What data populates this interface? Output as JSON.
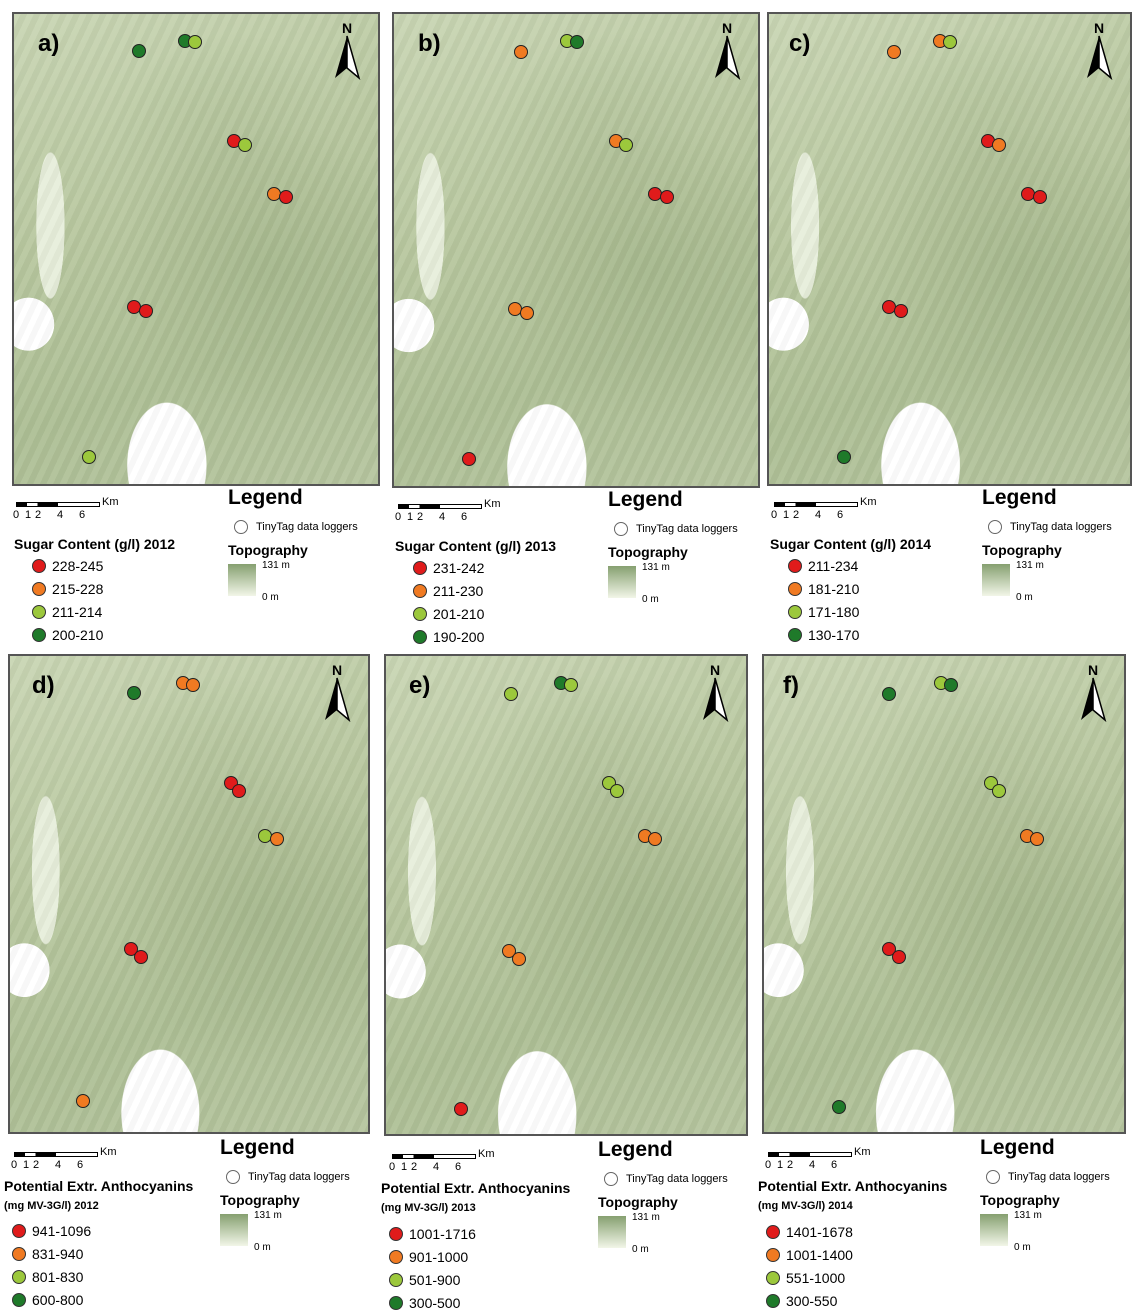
{
  "colors": {
    "red": "#e01b1b",
    "orange": "#f07a22",
    "lightgreen": "#9cc83c",
    "darkgreen": "#1f7a2a"
  },
  "legend": {
    "title": "Legend",
    "logger_label": "TinyTag data loggers",
    "topo_title": "Topography",
    "topo_max": "131 m",
    "topo_min": "0 m"
  },
  "scale": {
    "unit": "Km",
    "ticks": [
      "0",
      "1",
      "2",
      "4",
      "6"
    ]
  },
  "north_label": "N",
  "panels": [
    {
      "label": "a)",
      "title": "Sugar Content (g/l) 2012",
      "subtitle": "",
      "classes": [
        "228-245",
        "215-228",
        "211-214",
        "200-210"
      ]
    },
    {
      "label": "b)",
      "title": "Sugar Content (g/l) 2013",
      "subtitle": "",
      "classes": [
        "231-242",
        "211-230",
        "201-210",
        "190-200"
      ]
    },
    {
      "label": "c)",
      "title": "Sugar Content (g/l) 2014",
      "subtitle": "",
      "classes": [
        "211-234",
        "181-210",
        "171-180",
        "130-170"
      ]
    },
    {
      "label": "d)",
      "title": "Potential Extr. Anthocyanins",
      "subtitle": "(mg MV-3G/l) 2012",
      "classes": [
        "941-1096",
        "831-940",
        "801-830",
        "600-800"
      ]
    },
    {
      "label": "e)",
      "title": "Potential Extr. Anthocyanins",
      "subtitle": "(mg MV-3G/l) 2013",
      "classes": [
        "1001-1716",
        "901-1000",
        "501-900",
        "300-500"
      ]
    },
    {
      "label": "f)",
      "title": "Potential Extr. Anthocyanins",
      "subtitle": "(mg MV-3G/l) 2014",
      "classes": [
        "1401-1678",
        "1001-1400",
        "551-1000",
        "300-550"
      ]
    }
  ]
}
